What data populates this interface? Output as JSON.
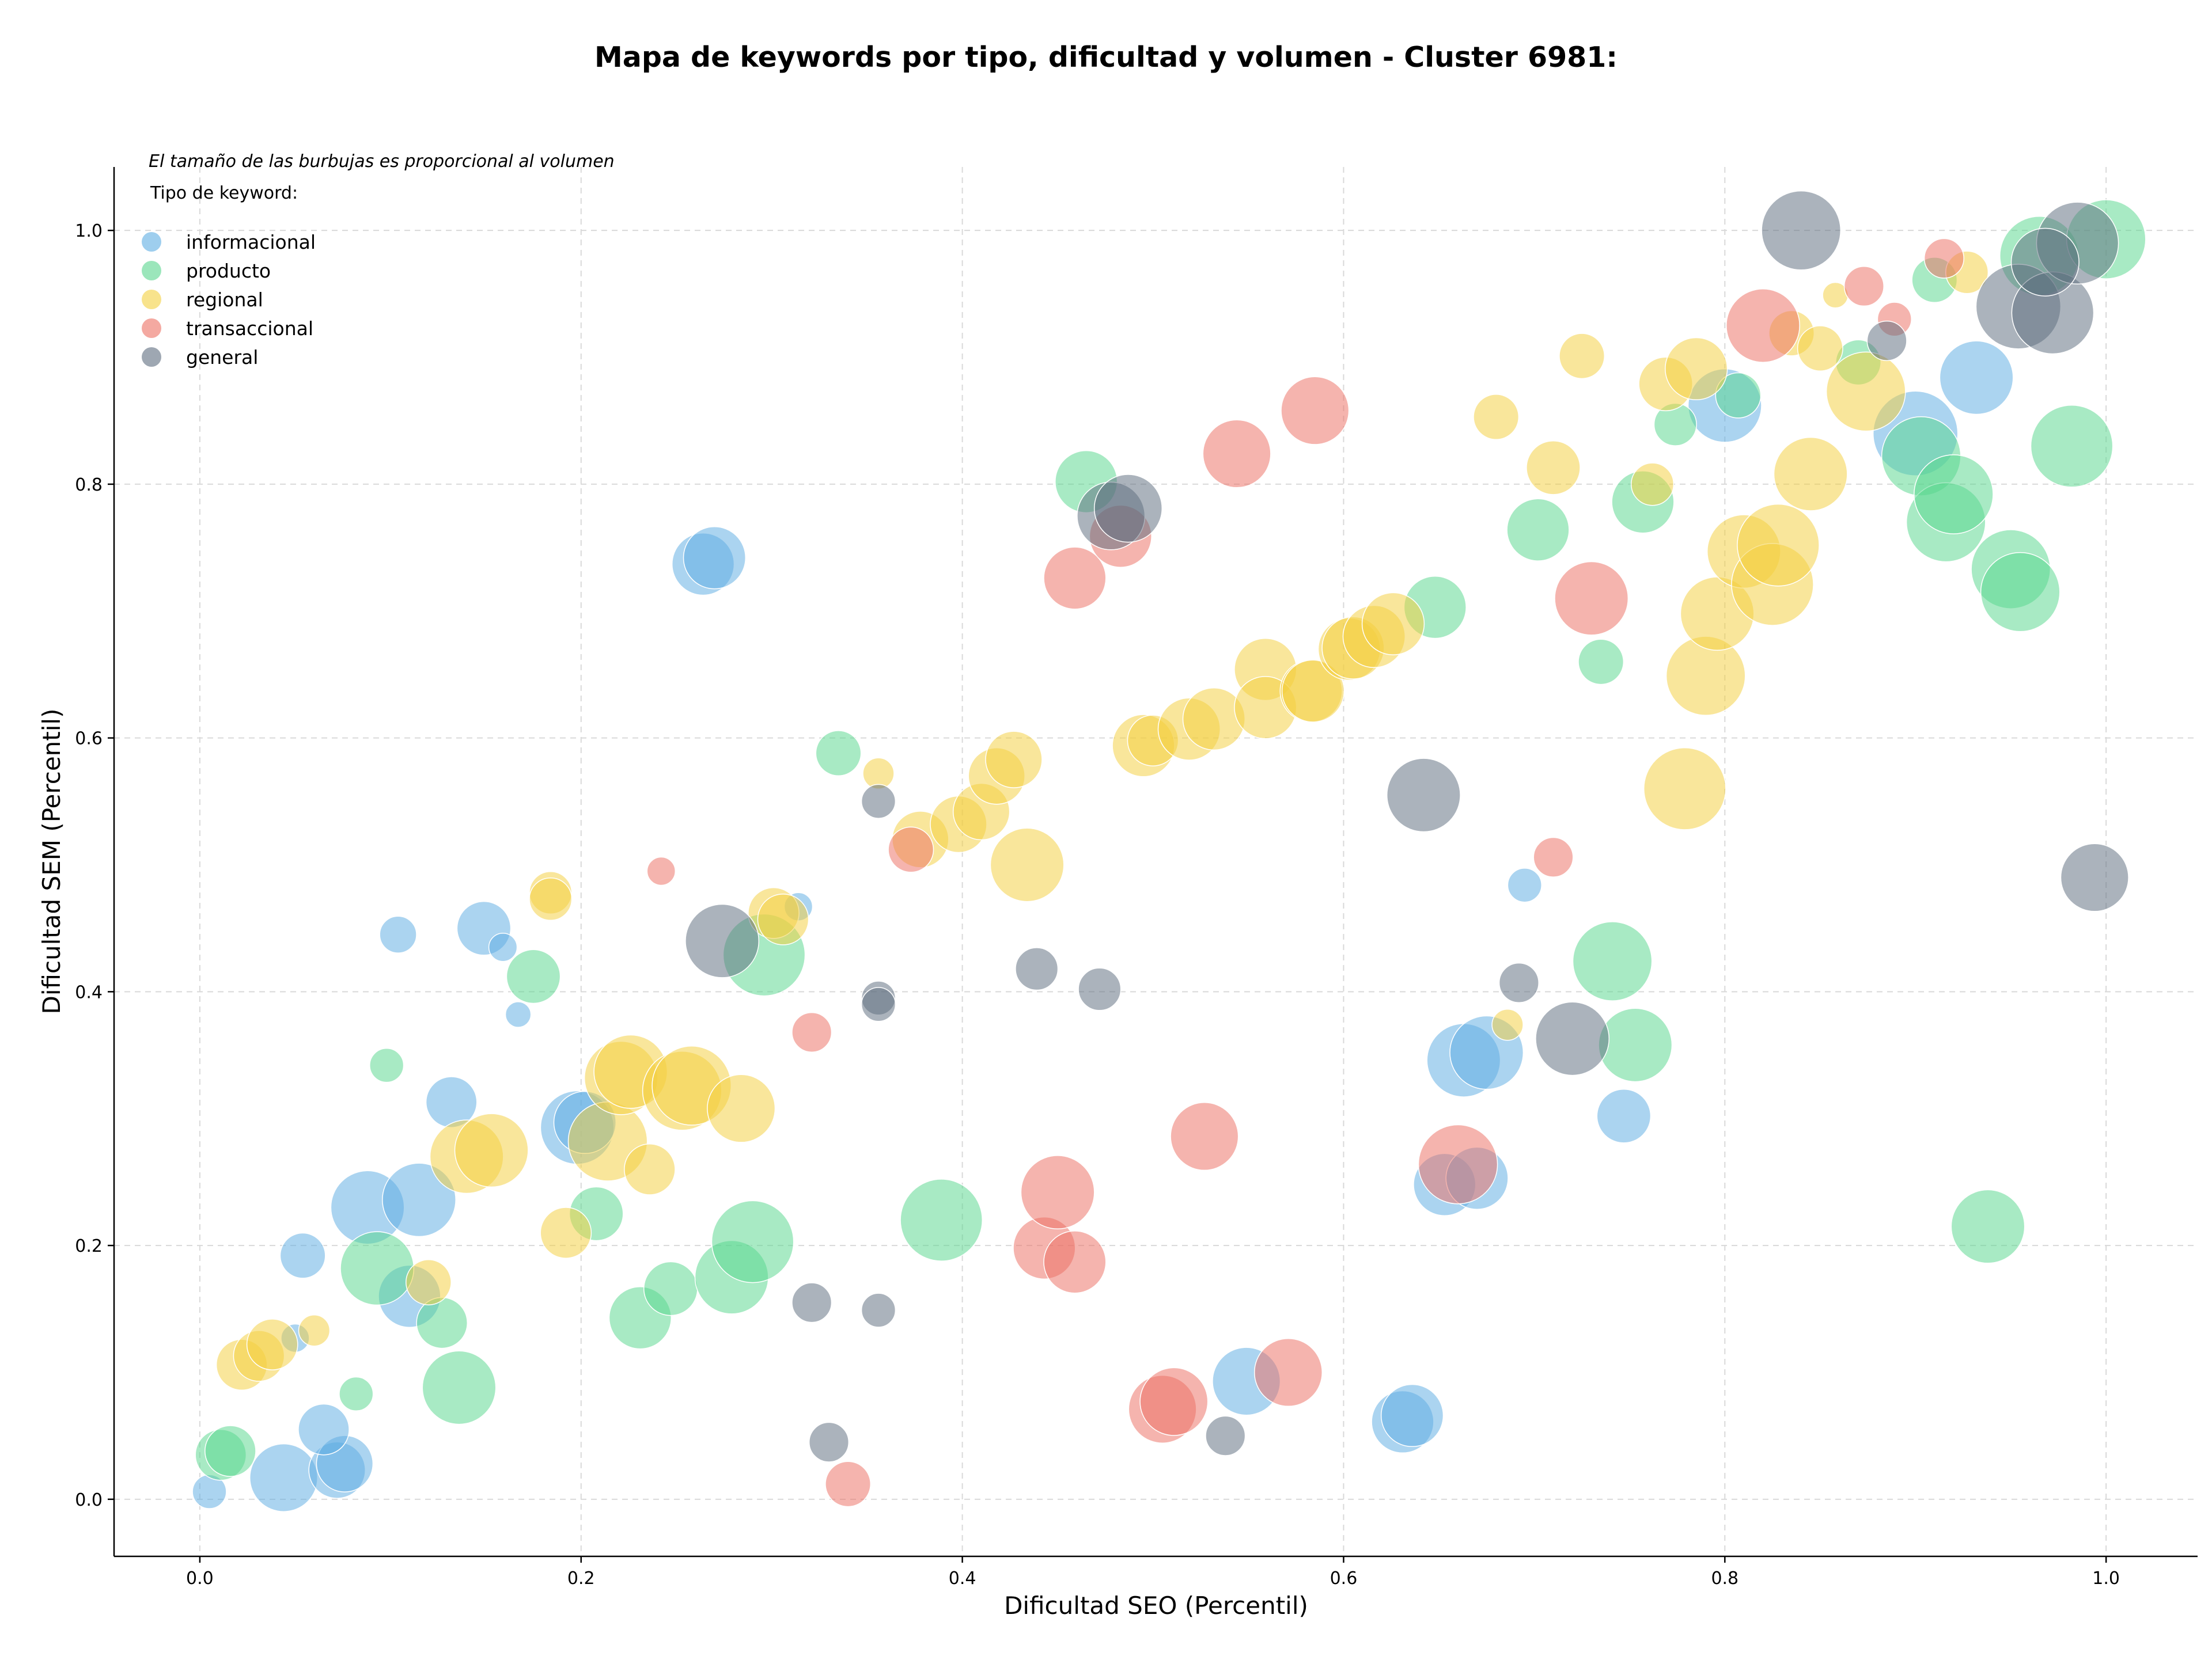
{
  "chart_data": {
    "type": "scatter",
    "title": "Mapa de keywords por tipo, dificultad y volumen - Cluster 6981:",
    "xlabel": "Dificultad SEO (Percentil)",
    "ylabel": "Dificultad SEM (Percentil)",
    "xlim": [
      -0.045,
      1.048
    ],
    "ylim": [
      -0.045,
      1.05
    ],
    "x_ticks": [
      "0.0",
      "0.2",
      "0.4",
      "0.6",
      "0.8",
      "1.0"
    ],
    "y_ticks": [
      "0.0",
      "0.2",
      "0.4",
      "0.6",
      "0.8",
      "1.0"
    ],
    "grid": true,
    "legend_placement": "top-left",
    "note": "El tamaño de las burbujas es proporcional al volumen",
    "legend_title": "Tipo de keyword:",
    "series": [
      {
        "name": "informacional",
        "color": "#5DADE2",
        "points": [
          [
            0.005,
            0.006,
            12
          ],
          [
            0.044,
            0.017,
            24
          ],
          [
            0.072,
            0.023,
            20
          ],
          [
            0.076,
            0.028,
            20
          ],
          [
            0.065,
            0.055,
            18
          ],
          [
            0.05,
            0.127,
            10
          ],
          [
            0.054,
            0.192,
            16
          ],
          [
            0.088,
            0.23,
            26
          ],
          [
            0.115,
            0.236,
            26
          ],
          [
            0.11,
            0.16,
            22
          ],
          [
            0.132,
            0.313,
            18
          ],
          [
            0.198,
            0.293,
            26
          ],
          [
            0.202,
            0.297,
            22
          ],
          [
            0.104,
            0.445,
            13
          ],
          [
            0.149,
            0.45,
            19
          ],
          [
            0.159,
            0.435,
            10
          ],
          [
            0.167,
            0.382,
            9
          ],
          [
            0.264,
            0.737,
            22
          ],
          [
            0.27,
            0.742,
            22
          ],
          [
            0.314,
            0.467,
            10
          ],
          [
            0.549,
            0.093,
            24
          ],
          [
            0.631,
            0.061,
            22
          ],
          [
            0.636,
            0.066,
            22
          ],
          [
            0.653,
            0.248,
            22
          ],
          [
            0.67,
            0.253,
            22
          ],
          [
            0.663,
            0.346,
            26
          ],
          [
            0.675,
            0.352,
            26
          ],
          [
            0.747,
            0.302,
            19
          ],
          [
            0.695,
            0.484,
            12
          ],
          [
            0.8,
            0.862,
            26
          ],
          [
            0.9,
            0.84,
            30
          ],
          [
            0.932,
            0.884,
            26
          ]
        ]
      },
      {
        "name": "producto",
        "color": "#58D68D",
        "points": [
          [
            0.011,
            0.035,
            18
          ],
          [
            0.016,
            0.038,
            18
          ],
          [
            0.082,
            0.083,
            12
          ],
          [
            0.093,
            0.182,
            26
          ],
          [
            0.098,
            0.342,
            12
          ],
          [
            0.127,
            0.139,
            18
          ],
          [
            0.136,
            0.088,
            26
          ],
          [
            0.175,
            0.412,
            19
          ],
          [
            0.208,
            0.225,
            19
          ],
          [
            0.231,
            0.143,
            22
          ],
          [
            0.247,
            0.166,
            19
          ],
          [
            0.279,
            0.175,
            26
          ],
          [
            0.29,
            0.203,
            29
          ],
          [
            0.296,
            0.429,
            29
          ],
          [
            0.335,
            0.588,
            16
          ],
          [
            0.389,
            0.22,
            29
          ],
          [
            0.465,
            0.802,
            22
          ],
          [
            0.648,
            0.703,
            22
          ],
          [
            0.702,
            0.764,
            22
          ],
          [
            0.735,
            0.66,
            16
          ],
          [
            0.741,
            0.424,
            28
          ],
          [
            0.753,
            0.358,
            26
          ],
          [
            0.757,
            0.786,
            22
          ],
          [
            0.774,
            0.847,
            15
          ],
          [
            0.807,
            0.87,
            16
          ],
          [
            0.87,
            0.896,
            16
          ],
          [
            0.91,
            0.961,
            16
          ],
          [
            0.903,
            0.822,
            28
          ],
          [
            0.916,
            0.77,
            28
          ],
          [
            0.92,
            0.792,
            28
          ],
          [
            0.938,
            0.215,
            26
          ],
          [
            0.95,
            0.733,
            28
          ],
          [
            0.955,
            0.715,
            28
          ],
          [
            0.965,
            0.98,
            28
          ],
          [
            0.982,
            0.83,
            29
          ],
          [
            1.0,
            0.993,
            28
          ]
        ]
      },
      {
        "name": "regional",
        "color": "#F4D03F",
        "points": [
          [
            0.022,
            0.106,
            18
          ],
          [
            0.031,
            0.113,
            18
          ],
          [
            0.038,
            0.122,
            18
          ],
          [
            0.06,
            0.133,
            11
          ],
          [
            0.12,
            0.171,
            16
          ],
          [
            0.14,
            0.27,
            26
          ],
          [
            0.153,
            0.275,
            26
          ],
          [
            0.184,
            0.478,
            15
          ],
          [
            0.184,
            0.473,
            15
          ],
          [
            0.192,
            0.21,
            18
          ],
          [
            0.214,
            0.282,
            28
          ],
          [
            0.221,
            0.332,
            26
          ],
          [
            0.226,
            0.337,
            26
          ],
          [
            0.236,
            0.26,
            18
          ],
          [
            0.253,
            0.322,
            28
          ],
          [
            0.258,
            0.326,
            28
          ],
          [
            0.284,
            0.308,
            24
          ],
          [
            0.301,
            0.462,
            18
          ],
          [
            0.306,
            0.457,
            18
          ],
          [
            0.356,
            0.572,
            11
          ],
          [
            0.378,
            0.52,
            20
          ],
          [
            0.398,
            0.532,
            20
          ],
          [
            0.41,
            0.542,
            20
          ],
          [
            0.418,
            0.57,
            20
          ],
          [
            0.427,
            0.583,
            20
          ],
          [
            0.434,
            0.5,
            26
          ],
          [
            0.495,
            0.594,
            22
          ],
          [
            0.5,
            0.598,
            18
          ],
          [
            0.519,
            0.607,
            22
          ],
          [
            0.532,
            0.615,
            22
          ],
          [
            0.559,
            0.654,
            22
          ],
          [
            0.559,
            0.624,
            22
          ],
          [
            0.583,
            0.637,
            22
          ],
          [
            0.584,
            0.637,
            22
          ],
          [
            0.603,
            0.67,
            22
          ],
          [
            0.605,
            0.671,
            22
          ],
          [
            0.616,
            0.68,
            22
          ],
          [
            0.626,
            0.69,
            22
          ],
          [
            0.68,
            0.853,
            16
          ],
          [
            0.71,
            0.813,
            19
          ],
          [
            0.725,
            0.901,
            16
          ],
          [
            0.762,
            0.8,
            15
          ],
          [
            0.769,
            0.879,
            19
          ],
          [
            0.779,
            0.56,
            29
          ],
          [
            0.785,
            0.891,
            22
          ],
          [
            0.79,
            0.649,
            28
          ],
          [
            0.796,
            0.698,
            26
          ],
          [
            0.81,
            0.747,
            26
          ],
          [
            0.825,
            0.721,
            29
          ],
          [
            0.828,
            0.752,
            29
          ],
          [
            0.835,
            0.919,
            16
          ],
          [
            0.845,
            0.808,
            26
          ],
          [
            0.85,
            0.907,
            16
          ],
          [
            0.858,
            0.949,
            9
          ],
          [
            0.874,
            0.873,
            28
          ],
          [
            0.927,
            0.967,
            15
          ],
          [
            0.686,
            0.374,
            11
          ]
        ]
      },
      {
        "name": "transaccional",
        "color": "#EC7063",
        "points": [
          [
            0.242,
            0.495,
            10
          ],
          [
            0.321,
            0.368,
            14
          ],
          [
            0.34,
            0.012,
            16
          ],
          [
            0.373,
            0.512,
            16
          ],
          [
            0.443,
            0.198,
            22
          ],
          [
            0.45,
            0.242,
            26
          ],
          [
            0.459,
            0.187,
            22
          ],
          [
            0.459,
            0.726,
            22
          ],
          [
            0.483,
            0.759,
            22
          ],
          [
            0.505,
            0.071,
            24
          ],
          [
            0.511,
            0.077,
            24
          ],
          [
            0.527,
            0.286,
            24
          ],
          [
            0.544,
            0.824,
            24
          ],
          [
            0.571,
            0.1,
            24
          ],
          [
            0.585,
            0.858,
            24
          ],
          [
            0.66,
            0.264,
            28
          ],
          [
            0.71,
            0.506,
            14
          ],
          [
            0.73,
            0.71,
            26
          ],
          [
            0.82,
            0.925,
            26
          ],
          [
            0.873,
            0.956,
            14
          ],
          [
            0.889,
            0.93,
            12
          ],
          [
            0.915,
            0.978,
            14
          ]
        ]
      },
      {
        "name": "general",
        "color": "#5D6D7E",
        "points": [
          [
            0.274,
            0.44,
            26
          ],
          [
            0.321,
            0.155,
            14
          ],
          [
            0.33,
            0.045,
            14
          ],
          [
            0.356,
            0.55,
            12
          ],
          [
            0.356,
            0.395,
            12
          ],
          [
            0.356,
            0.39,
            12
          ],
          [
            0.356,
            0.149,
            12
          ],
          [
            0.439,
            0.418,
            15
          ],
          [
            0.472,
            0.402,
            15
          ],
          [
            0.478,
            0.775,
            24
          ],
          [
            0.487,
            0.781,
            24
          ],
          [
            0.538,
            0.05,
            14
          ],
          [
            0.642,
            0.555,
            26
          ],
          [
            0.692,
            0.407,
            14
          ],
          [
            0.72,
            0.363,
            26
          ],
          [
            0.84,
            1.0,
            28
          ],
          [
            0.885,
            0.913,
            14
          ],
          [
            0.954,
            0.94,
            30
          ],
          [
            0.972,
            0.935,
            29
          ],
          [
            0.985,
            0.99,
            29
          ],
          [
            0.994,
            0.49,
            24
          ],
          [
            0.968,
            0.975,
            24
          ]
        ]
      }
    ]
  }
}
